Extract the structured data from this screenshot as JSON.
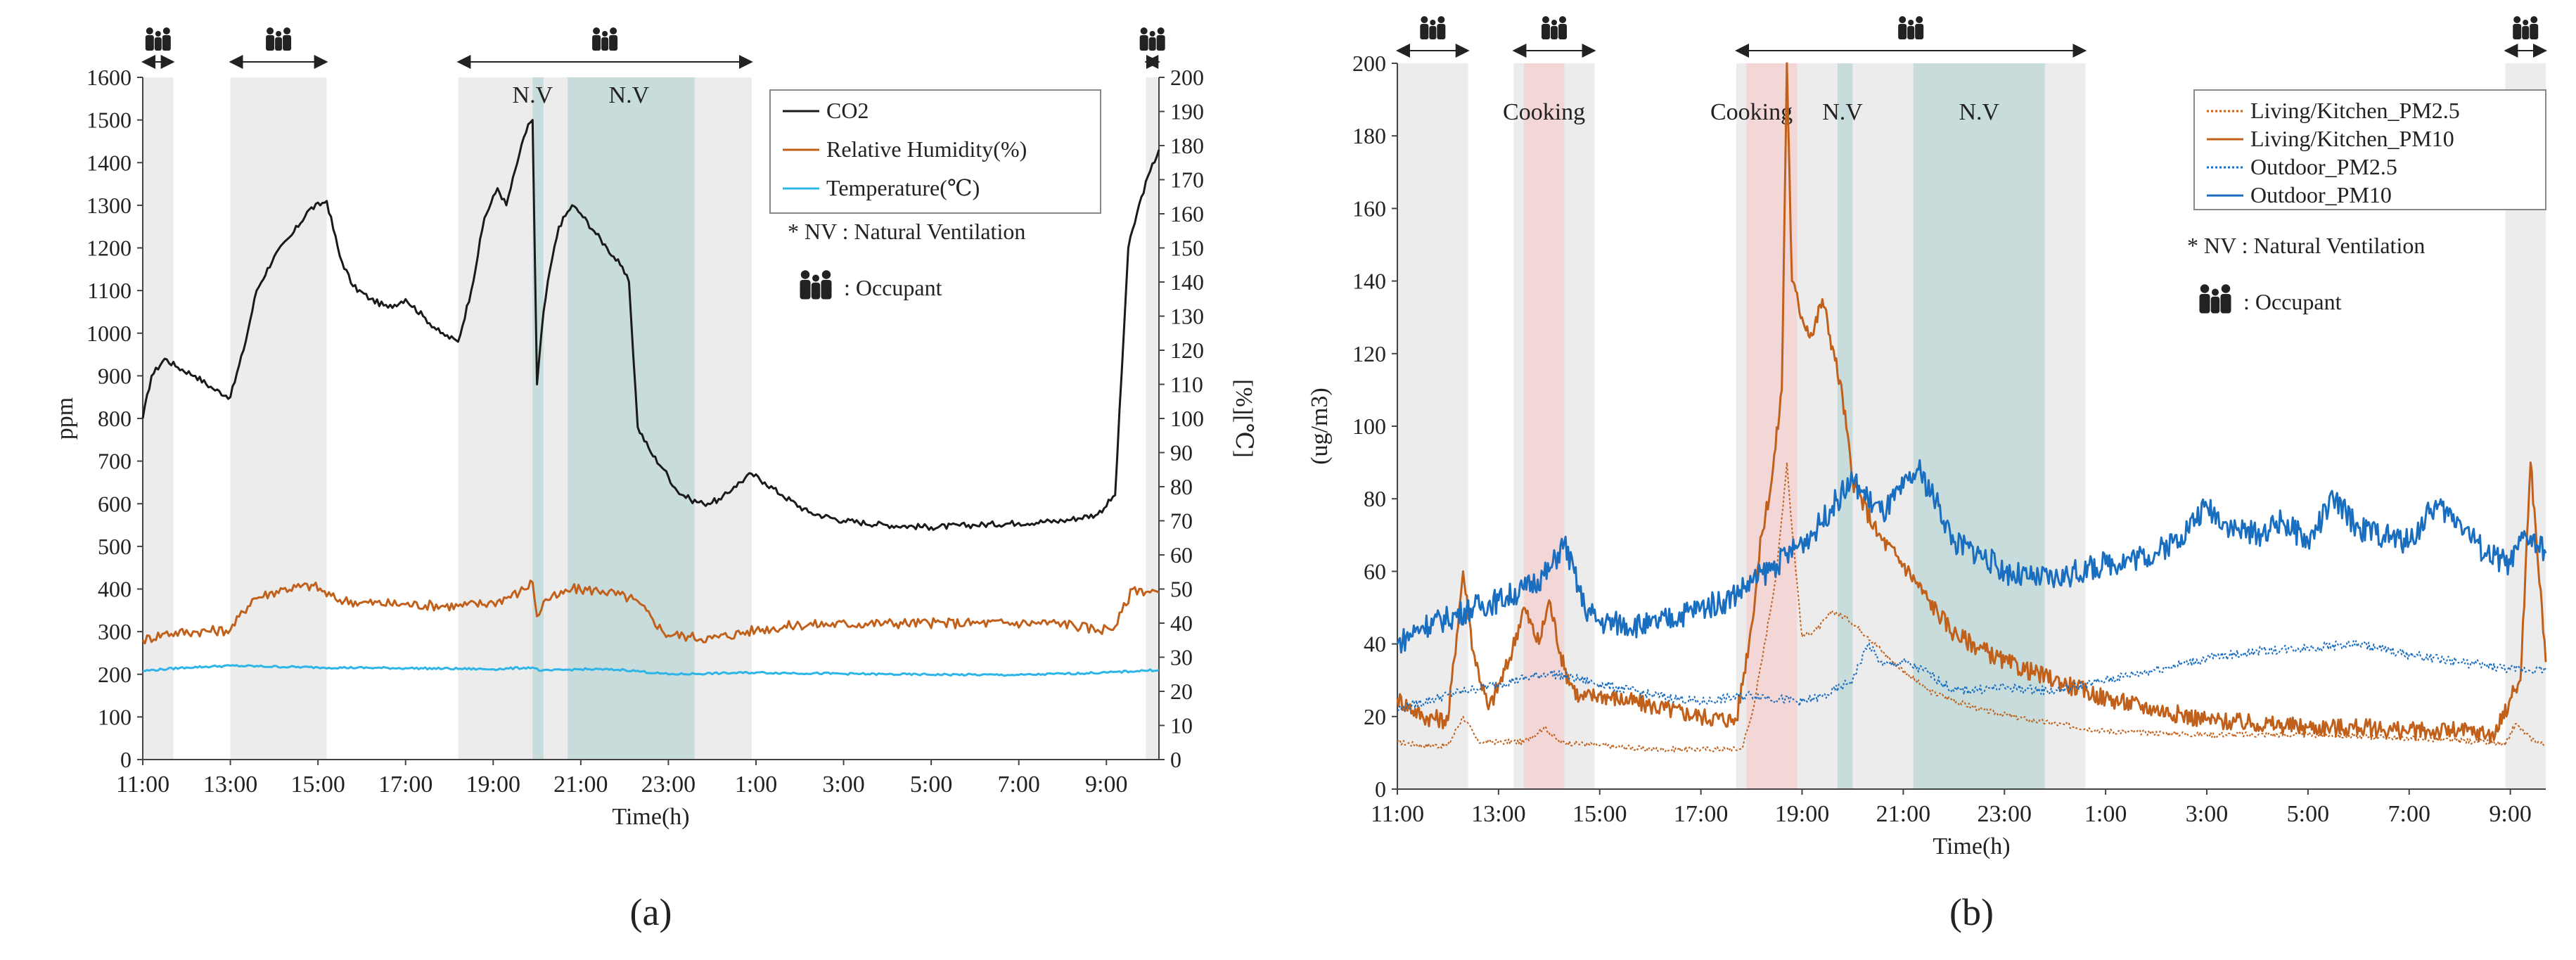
{
  "chart_data": [
    {
      "panel_label": "(a)",
      "type": "line",
      "xlabel": "Time(h)",
      "ylabel": "ppm",
      "y2label": "[%][℃]",
      "x_range_h": [
        11,
        34.2
      ],
      "ylim": [
        0,
        1600
      ],
      "y2lim": [
        0,
        200
      ],
      "x_tick_labels": [
        {
          "h": 11,
          "label": "11:00"
        },
        {
          "h": 13,
          "label": "13:00"
        },
        {
          "h": 15,
          "label": "15:00"
        },
        {
          "h": 17,
          "label": "17:00"
        },
        {
          "h": 19,
          "label": "19:00"
        },
        {
          "h": 21,
          "label": "21:00"
        },
        {
          "h": 23,
          "label": "23:00"
        },
        {
          "h": 25,
          "label": "1:00"
        },
        {
          "h": 27,
          "label": "3:00"
        },
        {
          "h": 29,
          "label": "5:00"
        },
        {
          "h": 31,
          "label": "7:00"
        },
        {
          "h": 33,
          "label": "9:00"
        }
      ],
      "y_ticks": [
        0,
        100,
        200,
        300,
        400,
        500,
        600,
        700,
        800,
        900,
        1000,
        1100,
        1200,
        1300,
        1400,
        1500,
        1600
      ],
      "y2_ticks": [
        0,
        10,
        20,
        30,
        40,
        50,
        60,
        70,
        80,
        90,
        100,
        110,
        120,
        130,
        140,
        150,
        160,
        170,
        180,
        190,
        200
      ],
      "occupied_periods": [
        [
          11,
          11.7
        ],
        [
          13,
          15.2
        ],
        [
          18.2,
          24.9
        ],
        [
          33.9,
          34.2
        ]
      ],
      "ventilation_periods": [
        [
          19.9,
          20.15
        ],
        [
          20.7,
          23.6
        ]
      ],
      "ventilation_labels": [
        {
          "h": 19.9,
          "text": "N.V"
        },
        {
          "h": 22.1,
          "text": "N.V"
        }
      ],
      "series": [
        {
          "name": "CO2",
          "axis": "left",
          "color": "#1a1a1a",
          "x": [
            11.0,
            11.2,
            11.5,
            11.8,
            12.2,
            12.6,
            13.0,
            13.3,
            13.6,
            14.0,
            14.4,
            14.8,
            15.2,
            15.5,
            15.8,
            16.2,
            16.6,
            17.0,
            17.4,
            17.8,
            18.2,
            18.5,
            18.8,
            19.1,
            19.3,
            19.6,
            19.8,
            19.9,
            20.0,
            20.15,
            20.3,
            20.5,
            20.8,
            21.0,
            21.3,
            21.6,
            21.9,
            22.1,
            22.3,
            22.6,
            22.9,
            23.2,
            23.5,
            23.8,
            24.2,
            24.5,
            24.9,
            25.2,
            25.6,
            26.2,
            27.0,
            28.0,
            29.0,
            30.0,
            31.0,
            32.0,
            32.8,
            33.2,
            33.5,
            33.8,
            34.0,
            34.2
          ],
          "y": [
            800,
            900,
            940,
            920,
            900,
            870,
            850,
            960,
            1100,
            1180,
            1230,
            1290,
            1310,
            1180,
            1110,
            1080,
            1060,
            1080,
            1040,
            1000,
            980,
            1100,
            1270,
            1340,
            1300,
            1420,
            1490,
            1500,
            880,
            1050,
            1150,
            1250,
            1300,
            1280,
            1240,
            1200,
            1160,
            1120,
            780,
            720,
            680,
            630,
            610,
            600,
            610,
            640,
            670,
            650,
            620,
            580,
            560,
            550,
            545,
            550,
            555,
            560,
            575,
            620,
            1200,
            1320,
            1380,
            1430
          ]
        },
        {
          "name": "Relative Humidity(%)",
          "axis": "right",
          "color": "#c0601a",
          "x": [
            11.0,
            11.5,
            12.2,
            13.0,
            13.5,
            14.2,
            14.9,
            15.4,
            16.0,
            17.0,
            18.2,
            19.0,
            19.6,
            19.9,
            20.0,
            20.2,
            20.5,
            20.8,
            21.5,
            22.2,
            22.6,
            22.9,
            23.5,
            24.0,
            25.0,
            26.0,
            28.0,
            30.0,
            32.0,
            32.8,
            33.2,
            33.6,
            34.2
          ],
          "y": [
            35,
            37,
            37.5,
            38,
            47,
            50,
            51,
            47,
            46,
            45.5,
            45,
            46,
            49,
            52,
            42,
            47,
            48,
            50,
            49.5,
            47,
            42,
            37,
            36,
            35.5,
            38,
            39.5,
            40,
            40,
            40,
            38,
            39,
            50,
            49
          ]
        },
        {
          "name": "Temperature(℃)",
          "axis": "right",
          "color": "#2db5e8",
          "x": [
            11.0,
            12.0,
            13.0,
            15.0,
            17.0,
            19.0,
            19.9,
            20.1,
            21.0,
            22.0,
            23.0,
            25.0,
            28.0,
            31.0,
            33.0,
            34.2
          ],
          "y": [
            26,
            27,
            27.5,
            27,
            26.8,
            26.5,
            27,
            26,
            26.5,
            26.3,
            25,
            25.5,
            25,
            24.8,
            25.5,
            26.3
          ]
        }
      ],
      "legend": [
        "CO2",
        "Relative Humidity(%)",
        "Temperature(℃)"
      ],
      "legend_position": "top-right",
      "annotations": [
        "* NV : Natural Ventilation",
        ": Occupant"
      ]
    },
    {
      "panel_label": "(b)",
      "type": "line",
      "xlabel": "Time(h)",
      "ylabel": "(ug/m3)",
      "x_range_h": [
        11,
        33.7
      ],
      "ylim": [
        0,
        200
      ],
      "x_tick_labels": [
        {
          "h": 11,
          "label": "11:00"
        },
        {
          "h": 13,
          "label": "13:00"
        },
        {
          "h": 15,
          "label": "15:00"
        },
        {
          "h": 17,
          "label": "17:00"
        },
        {
          "h": 19,
          "label": "19:00"
        },
        {
          "h": 21,
          "label": "21:00"
        },
        {
          "h": 23,
          "label": "23:00"
        },
        {
          "h": 25,
          "label": "1:00"
        },
        {
          "h": 27,
          "label": "3:00"
        },
        {
          "h": 29,
          "label": "5:00"
        },
        {
          "h": 31,
          "label": "7:00"
        },
        {
          "h": 33,
          "label": "9:00"
        }
      ],
      "y_ticks": [
        0,
        20,
        40,
        60,
        80,
        100,
        120,
        140,
        160,
        180,
        200
      ],
      "occupied_periods": [
        [
          11,
          12.4
        ],
        [
          13.3,
          14.9
        ],
        [
          17.7,
          24.6
        ],
        [
          32.9,
          33.7
        ]
      ],
      "cooking_periods": [
        [
          13.5,
          14.3
        ],
        [
          17.9,
          18.9
        ]
      ],
      "ventilation_periods": [
        [
          19.7,
          20.0
        ],
        [
          21.2,
          23.8
        ]
      ],
      "region_labels": [
        {
          "h": 13.9,
          "text": "Cooking"
        },
        {
          "h": 18.0,
          "text": "Cooking"
        },
        {
          "h": 19.8,
          "text": "N.V"
        },
        {
          "h": 22.5,
          "text": "N.V"
        }
      ],
      "series": [
        {
          "name": "Living/Kitchen_PM2.5",
          "color": "#c0601a",
          "dash": "dotted",
          "x": [
            11.0,
            11.5,
            12.0,
            12.3,
            12.6,
            13.0,
            13.5,
            13.9,
            14.2,
            15.0,
            16.0,
            17.0,
            17.8,
            18.0,
            18.2,
            18.5,
            18.7,
            18.8,
            19.0,
            19.3,
            19.6,
            19.9,
            20.3,
            20.8,
            21.5,
            22.5,
            23.5,
            25.0,
            27.0,
            29.0,
            31.0,
            32.5,
            32.9,
            33.1,
            33.4,
            33.7
          ],
          "y": [
            13,
            12,
            12,
            20,
            13,
            13,
            13,
            17,
            13,
            12,
            11,
            11,
            11,
            20,
            35,
            60,
            90,
            72,
            42,
            44,
            49,
            47,
            42,
            35,
            27,
            22,
            19,
            16,
            15,
            15,
            14,
            13,
            12,
            18,
            14,
            12
          ]
        },
        {
          "name": "Living/Kitchen_PM10",
          "color": "#c0601a",
          "x": [
            11.0,
            11.5,
            12.0,
            12.3,
            12.5,
            12.8,
            13.2,
            13.5,
            13.8,
            14.0,
            14.3,
            14.6,
            15.0,
            16.0,
            17.0,
            17.7,
            18.0,
            18.2,
            18.4,
            18.6,
            18.7,
            18.8,
            19.0,
            19.2,
            19.4,
            19.6,
            19.8,
            20.0,
            20.5,
            21.0,
            21.5,
            22.0,
            23.0,
            24.0,
            25.0,
            26.0,
            27.0,
            28.0,
            29.0,
            30.0,
            31.0,
            32.0,
            32.7,
            33.0,
            33.2,
            33.4,
            33.7
          ],
          "y": [
            25,
            20,
            19,
            60,
            38,
            22,
            35,
            50,
            40,
            52,
            33,
            25,
            26,
            23,
            20,
            19,
            45,
            70,
            85,
            110,
            200,
            140,
            130,
            125,
            135,
            122,
            108,
            85,
            70,
            62,
            52,
            43,
            35,
            30,
            25,
            22,
            19,
            18,
            17,
            17,
            16,
            16,
            15,
            25,
            30,
            90,
            35
          ]
        },
        {
          "name": "Outdoor_PM2.5",
          "color": "#1a6ec0",
          "dash": "dotted",
          "x": [
            11.0,
            12.0,
            13.0,
            14.0,
            15.0,
            16.0,
            17.0,
            18.0,
            19.0,
            19.5,
            20.0,
            20.3,
            20.6,
            21.0,
            21.5,
            22.0,
            23.0,
            24.0,
            25.0,
            26.0,
            27.0,
            28.0,
            29.0,
            30.0,
            31.0,
            32.0,
            33.0,
            33.7
          ],
          "y": [
            22,
            26,
            29,
            32,
            29,
            26,
            24,
            26,
            24,
            26,
            30,
            40,
            34,
            35,
            32,
            27,
            28,
            27,
            30,
            33,
            36,
            38,
            39,
            40,
            37,
            35,
            33,
            33
          ]
        },
        {
          "name": "Outdoor_PM10",
          "color": "#1a6ec0",
          "x": [
            11.0,
            11.5,
            12.0,
            12.5,
            13.0,
            13.5,
            14.0,
            14.3,
            14.7,
            15.0,
            16.0,
            17.0,
            17.5,
            18.0,
            18.5,
            19.0,
            19.3,
            19.6,
            20.0,
            20.3,
            20.6,
            21.0,
            21.3,
            21.7,
            22.0,
            22.5,
            23.0,
            23.5,
            24.0,
            25.0,
            26.0,
            26.5,
            27.0,
            27.5,
            28.0,
            28.5,
            29.0,
            29.5,
            30.0,
            30.5,
            31.0,
            31.5,
            32.0,
            32.5,
            33.0,
            33.3,
            33.7
          ],
          "y": [
            40,
            45,
            47,
            50,
            52,
            55,
            60,
            68,
            50,
            46,
            45,
            50,
            52,
            57,
            62,
            68,
            72,
            78,
            85,
            80,
            76,
            83,
            88,
            78,
            68,
            65,
            60,
            58,
            58,
            62,
            65,
            70,
            78,
            72,
            70,
            74,
            68,
            80,
            72,
            70,
            68,
            78,
            74,
            65,
            62,
            70,
            65
          ]
        }
      ],
      "legend": [
        "Living/Kitchen_PM2.5",
        "Living/Kitchen_PM10",
        "Outdoor_PM2.5",
        "Outdoor_PM10"
      ],
      "legend_position": "top-right",
      "annotations": [
        "* NV : Natural Ventilation",
        ": Occupant"
      ]
    }
  ]
}
